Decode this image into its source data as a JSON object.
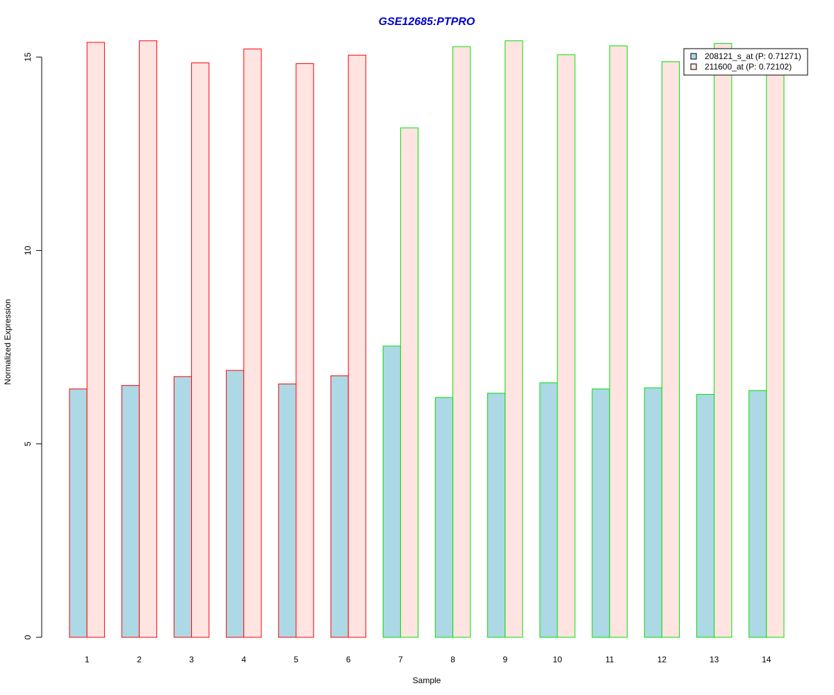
{
  "colors": {
    "title": "#0000cc",
    "series1_fill": "#add8e6",
    "series2_fill": "#ffe4e1",
    "group1_border": "#ff0000",
    "group2_border": "#00e000",
    "axis": "#000000"
  },
  "chart_data": {
    "type": "bar",
    "title": "GSE12685:PTPRO",
    "xlabel": "Sample",
    "ylabel": "Normalized Expression",
    "ylim": [
      0,
      15.5
    ],
    "yticks": [
      0,
      5,
      10,
      15
    ],
    "categories": [
      "1",
      "2",
      "3",
      "4",
      "5",
      "6",
      "7",
      "8",
      "9",
      "10",
      "11",
      "12",
      "13",
      "14"
    ],
    "group_border": [
      "red",
      "red",
      "red",
      "red",
      "red",
      "red",
      "green",
      "green",
      "green",
      "green",
      "green",
      "green",
      "green",
      "green"
    ],
    "series": [
      {
        "name": "208121_s_at (P: 0.71271)",
        "values": [
          6.42,
          6.51,
          6.74,
          6.9,
          6.55,
          6.76,
          7.53,
          6.2,
          6.31,
          6.58,
          6.42,
          6.45,
          6.28,
          6.38
        ]
      },
      {
        "name": "211600_at (P: 0.72102)",
        "values": [
          15.38,
          15.42,
          14.85,
          15.21,
          14.83,
          15.05,
          13.17,
          15.27,
          15.42,
          15.06,
          15.29,
          14.88,
          15.35,
          14.6
        ]
      }
    ],
    "legend_position": "top-right"
  }
}
